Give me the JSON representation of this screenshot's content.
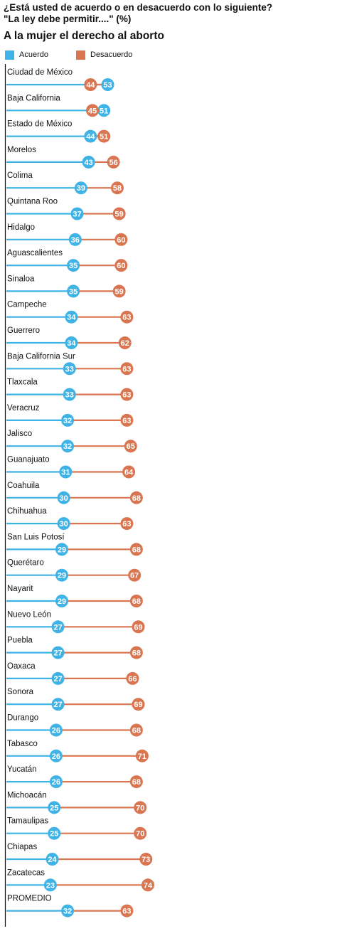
{
  "header": {
    "question_line1": "¿Está usted de acuerdo o en desacuerdo con lo siguiente?",
    "question_line2": "\"La ley debe permitir....\"  (%)",
    "subtitle": "A la mujer el derecho al aborto"
  },
  "legend": {
    "agree_label": "Acuerdo",
    "disagree_label": "Desacuerdo"
  },
  "colors": {
    "agree": "#3fb2e6",
    "disagree": "#d97651",
    "axis": "#111111"
  },
  "chart_data": {
    "type": "dumbbell",
    "categories": [
      "Ciudad de México",
      "Baja California",
      "Estado de México",
      "Morelos",
      "Colima",
      "Quintana Roo",
      "Hidalgo",
      "Aguascalientes",
      "Sinaloa",
      "Campeche",
      "Guerrero",
      "Baja California Sur",
      "Tlaxcala",
      "Veracruz",
      "Jalisco",
      "Guanajuato",
      "Coahuila",
      "Chihuahua",
      "San Luis Potosí",
      "Querétaro",
      "Nayarit",
      "Nuevo León",
      "Puebla",
      "Oaxaca",
      "Sonora",
      "Durango",
      "Tabasco",
      "Yucatán",
      "Michoacán",
      "Tamaulipas",
      "Chiapas",
      "Zacatecas",
      "PROMEDIO"
    ],
    "series": [
      {
        "name": "Acuerdo",
        "values": [
          53,
          51,
          44,
          43,
          39,
          37,
          36,
          35,
          35,
          34,
          34,
          33,
          33,
          32,
          32,
          31,
          30,
          30,
          29,
          29,
          29,
          27,
          27,
          27,
          27,
          26,
          26,
          26,
          25,
          25,
          24,
          23,
          32
        ]
      },
      {
        "name": "Desacuerdo",
        "values": [
          44,
          45,
          51,
          56,
          58,
          59,
          60,
          60,
          59,
          63,
          62,
          63,
          63,
          63,
          65,
          64,
          68,
          63,
          68,
          67,
          68,
          69,
          68,
          66,
          69,
          68,
          71,
          68,
          70,
          70,
          73,
          74,
          63
        ]
      }
    ],
    "legend_position": "top-left"
  }
}
